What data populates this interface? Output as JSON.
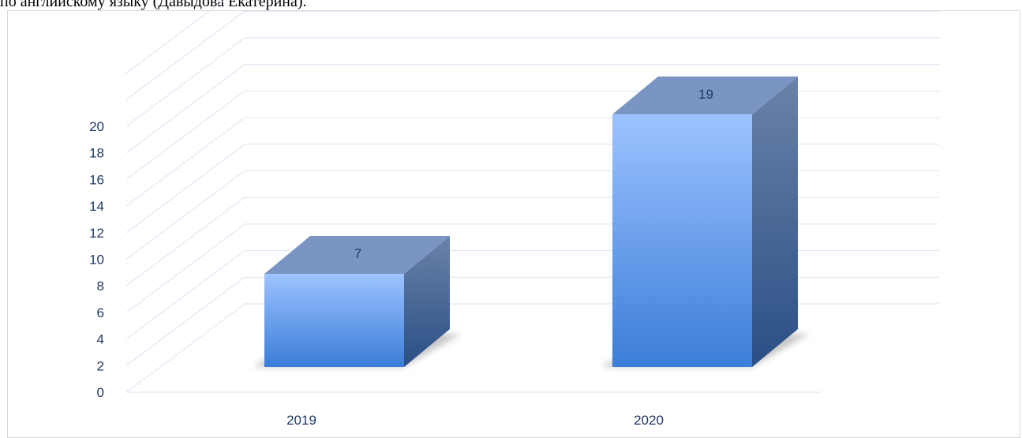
{
  "caption": "по английскому языку (Давыдова Екатерина).",
  "chart_data": {
    "type": "bar",
    "style": "3d-column",
    "categories": [
      "2019",
      "2020"
    ],
    "values": [
      7,
      19
    ],
    "data_labels": [
      "7",
      "19"
    ],
    "title": "",
    "xlabel": "",
    "ylabel": "",
    "ylim": [
      0,
      20
    ],
    "yticks": [
      0,
      2,
      4,
      6,
      8,
      10,
      12,
      14,
      16,
      18,
      20
    ],
    "ytick_labels": [
      "0",
      "2",
      "4",
      "6",
      "8",
      "10",
      "12",
      "14",
      "16",
      "18",
      "20"
    ],
    "grid": true,
    "legend": "none",
    "colors": {
      "bar_front_top": "#9dc3ff",
      "bar_front_bottom": "#3b7dd8",
      "bar_top": "#7a95c4",
      "bar_side_top": "#6a82a8",
      "bar_side_bottom": "#2a4f85",
      "grid": "#dae3f3",
      "text": "#1f3864"
    }
  }
}
